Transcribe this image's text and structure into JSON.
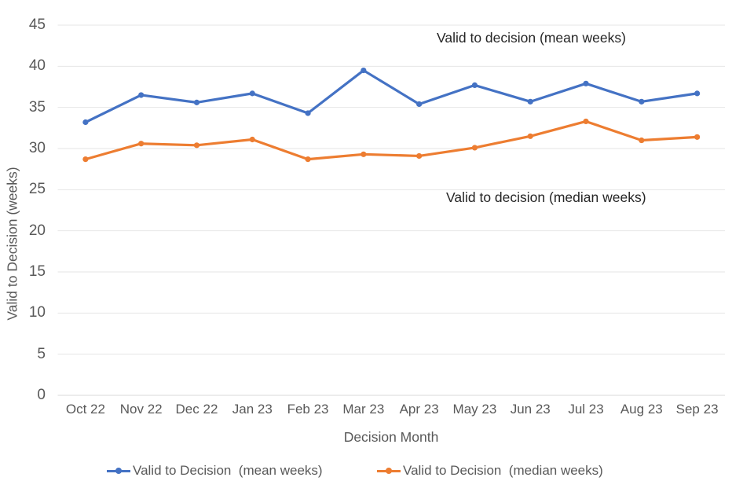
{
  "chart_data": {
    "type": "line",
    "title": "",
    "xlabel": "Decision Month",
    "ylabel": "Valid to Decision (weeks)",
    "ylim": [
      0,
      45
    ],
    "y_ticks": [
      45,
      40,
      35,
      30,
      25,
      20,
      15,
      10,
      5,
      0
    ],
    "grid": true,
    "legend_position": "bottom",
    "categories": [
      "Oct 22",
      "Nov 22",
      "Dec 22",
      "Jan 23",
      "Feb 23",
      "Mar 23",
      "Apr 23",
      "May 23",
      "Jun 23",
      "Jul 23",
      "Aug 23",
      "Sep 23"
    ],
    "series": [
      {
        "name": "Valid to Decision  (mean weeks)",
        "color": "#4472C4",
        "values": [
          33.2,
          36.5,
          35.6,
          36.7,
          34.3,
          39.5,
          35.4,
          37.7,
          35.7,
          37.9,
          35.7,
          36.7
        ]
      },
      {
        "name": "Valid to Decision  (median weeks)",
        "color": "#ED7D31",
        "values": [
          28.7,
          30.6,
          30.4,
          31.1,
          28.7,
          29.3,
          29.1,
          30.1,
          31.5,
          33.3,
          31.0,
          31.4
        ]
      }
    ],
    "annotations": [
      {
        "text": "Valid to decision (mean weeks)"
      },
      {
        "text": "Valid to decision (median weeks)"
      }
    ],
    "colors": {
      "gridline": "#E6E6E6",
      "axis_line": "#D9D9D9",
      "tick_text": "#595959",
      "annotation_text": "#262626"
    }
  }
}
